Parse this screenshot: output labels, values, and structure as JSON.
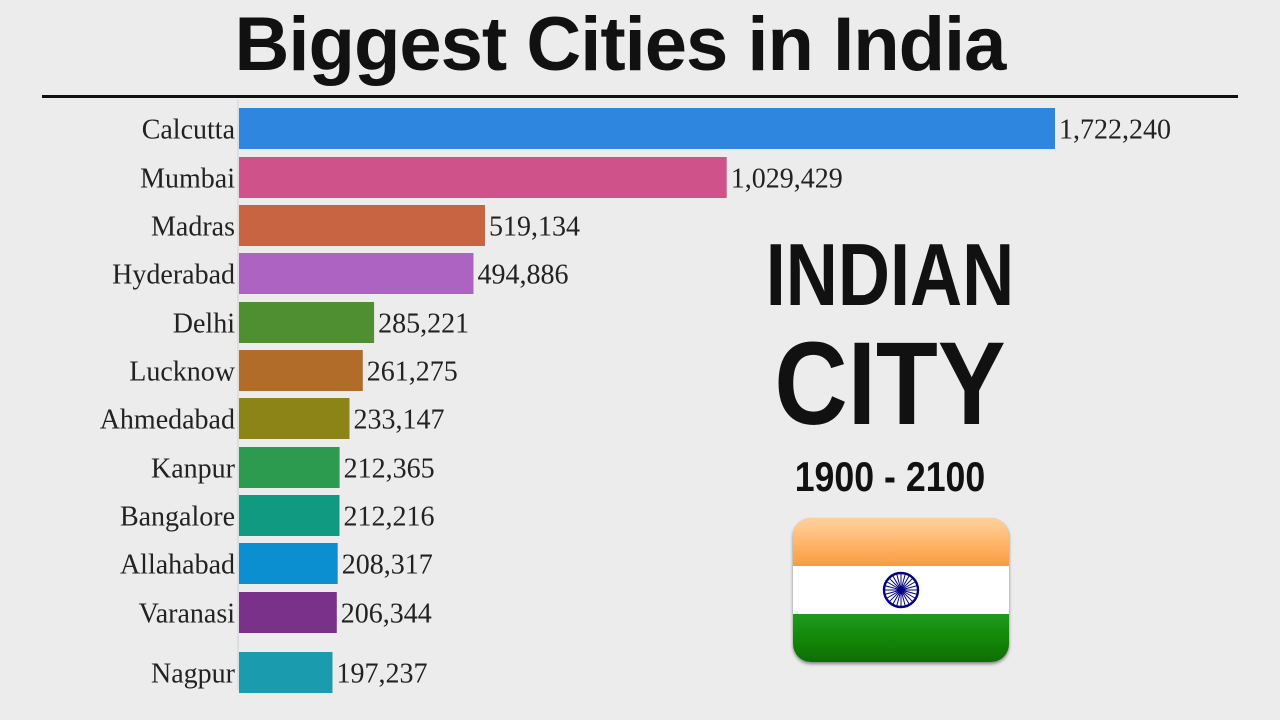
{
  "title": "Biggest Cities in India",
  "panel": {
    "line1": "INDIAN",
    "line2": "CITY",
    "years": "1900 - 2100"
  },
  "chart_data": {
    "type": "bar",
    "orientation": "horizontal",
    "title": "Biggest Cities in India",
    "categories": [
      "Calcutta",
      "Mumbai",
      "Madras",
      "Hyderabad",
      "Delhi",
      "Lucknow",
      "Ahmedabad",
      "Kanpur",
      "Bangalore",
      "Allahabad",
      "Varanasi",
      "Nagpur"
    ],
    "values": [
      1722240,
      1029429,
      519134,
      494886,
      285221,
      261275,
      233147,
      212365,
      212216,
      208317,
      206344,
      197237
    ],
    "value_labels": [
      "1,722,240",
      "1,029,429",
      "519,134",
      "494,886",
      "285,221",
      "261,275",
      "233,147",
      "212,365",
      "212,216",
      "208,317",
      "206,344",
      "197,237"
    ],
    "colors": [
      "#2f86de",
      "#d0528a",
      "#c96442",
      "#ad63c2",
      "#4f8f32",
      "#b06c28",
      "#8d8418",
      "#2d9b4f",
      "#109a82",
      "#0c8fd0",
      "#79318a",
      "#1a9cae"
    ],
    "xlim": [
      0,
      1722240
    ],
    "grid": false,
    "legend": "none"
  }
}
